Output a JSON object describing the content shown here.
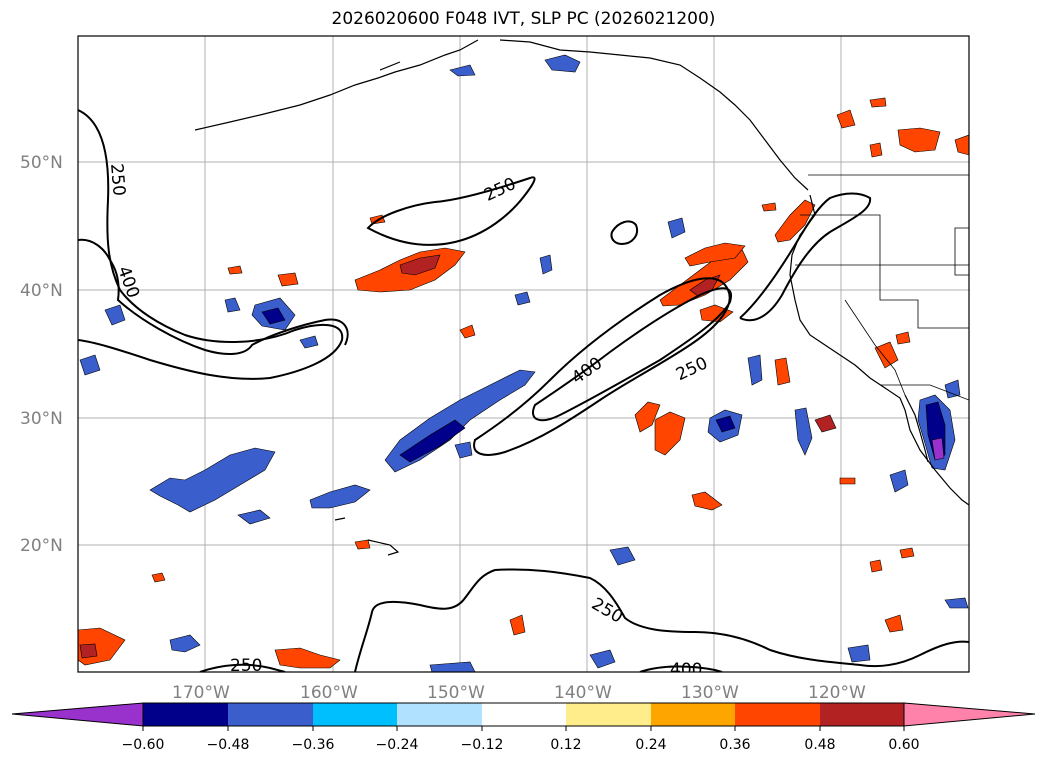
{
  "title": "2026020600 F048 IVT, SLP PC (2026021200)",
  "latitude_labels": [
    "50°N",
    "40°N",
    "30°N",
    "20°N"
  ],
  "longitude_labels": [
    "170°W",
    "160°W",
    "150°W",
    "140°W",
    "130°W",
    "120°W"
  ],
  "colorbar": {
    "ticks": [
      "−0.60",
      "−0.48",
      "−0.36",
      "−0.24",
      "−0.12",
      "0.12",
      "0.24",
      "0.36",
      "0.48",
      "0.60"
    ],
    "colors": [
      "#9932cc",
      "#00008b",
      "#3a5fcd",
      "#00bfff",
      "#b0e2ff",
      "#ffffff",
      "#ffec8b",
      "#ffa500",
      "#ff4500",
      "#b22222",
      "#ff82ab"
    ]
  },
  "contour_labels": [
    "250",
    "400",
    "250",
    "400",
    "250",
    "250",
    "400"
  ]
}
